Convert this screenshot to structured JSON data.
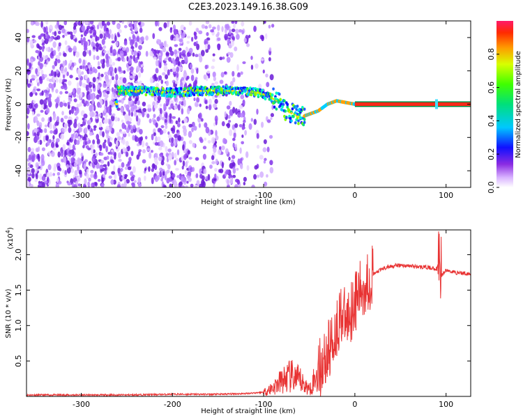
{
  "title": "C2E3.2023.149.16.38.G09",
  "chart_data": [
    {
      "type": "heatmap",
      "xlabel": "Height of straight line (km)",
      "ylabel": "Frequency (Hz)",
      "xlim": [
        -360,
        127
      ],
      "ylim": [
        -50,
        50
      ],
      "xticks": [
        -300,
        -200,
        -100,
        0,
        100
      ],
      "yticks": [
        -40,
        -20,
        0,
        20,
        40
      ],
      "colorbar": {
        "label": "Normalized spectral amplitude",
        "range": [
          0,
          1
        ],
        "ticks": [
          "0.0",
          "0.2",
          "0.4",
          "0.6",
          "0.8"
        ]
      },
      "ridge": {
        "description_points": [
          [
            -260,
            8
          ],
          [
            -230,
            8
          ],
          [
            -200,
            7
          ],
          [
            -170,
            8
          ],
          [
            -140,
            8
          ],
          [
            -120,
            8
          ],
          [
            -100,
            6
          ],
          [
            -85,
            2
          ],
          [
            -75,
            -4
          ],
          [
            -60,
            -8
          ],
          [
            -50,
            -6
          ],
          [
            -40,
            -4
          ],
          [
            -30,
            0
          ],
          [
            -20,
            2
          ],
          [
            -10,
            1
          ],
          [
            0,
            0
          ],
          [
            50,
            0
          ],
          [
            90,
            0
          ],
          [
            127,
            0
          ]
        ]
      }
    },
    {
      "type": "line",
      "xlabel": "Height of straight line (km)",
      "ylabel": "SNR (10 * v/v)",
      "ylabel_multiplier": "(x10",
      "ylabel_multiplier_exp": "4",
      "xlim": [
        -360,
        127
      ],
      "ylim": [
        0,
        2.35
      ],
      "xticks": [
        -300,
        -200,
        -100,
        0,
        100
      ],
      "yticks": [
        0.5,
        1.0,
        1.5,
        2.0
      ],
      "ytick_labels": [
        "0.5",
        "1.0",
        "1.5",
        "2.0"
      ],
      "color": "#e83232",
      "x": [
        -360,
        -300,
        -250,
        -200,
        -150,
        -120,
        -100,
        -90,
        -80,
        -70,
        -60,
        -50,
        -40,
        -30,
        -20,
        -15,
        -10,
        0,
        10,
        20,
        30,
        40,
        50,
        60,
        70,
        80,
        90,
        93,
        95,
        100,
        110,
        127
      ],
      "y": [
        0.02,
        0.02,
        0.02,
        0.03,
        0.03,
        0.04,
        0.06,
        0.12,
        0.22,
        0.28,
        0.22,
        0.1,
        0.35,
        0.6,
        0.95,
        1.2,
        1.05,
        1.35,
        1.55,
        1.72,
        1.8,
        1.84,
        1.85,
        1.84,
        1.83,
        1.82,
        1.8,
        2.0,
        1.7,
        1.78,
        1.75,
        1.73
      ]
    }
  ]
}
